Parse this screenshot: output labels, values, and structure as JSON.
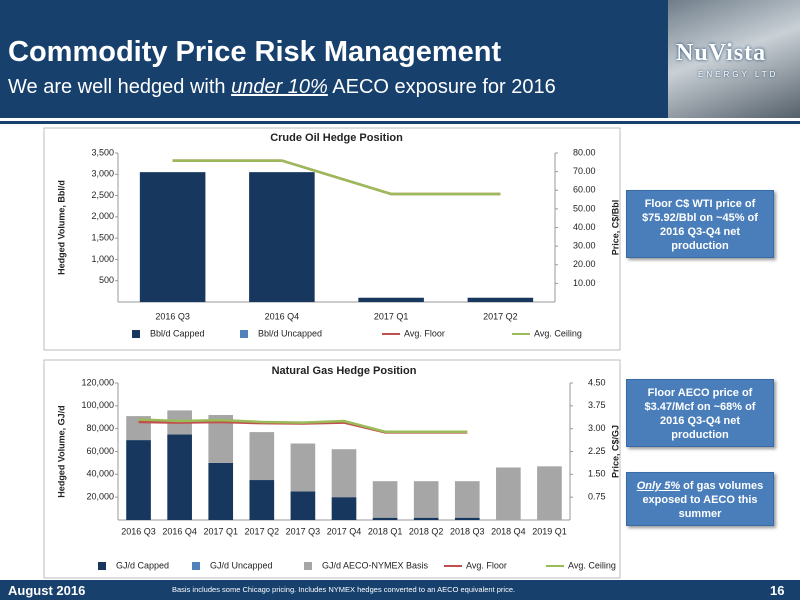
{
  "header": {
    "title": "Commodity Price Risk Management",
    "subtitle": {
      "before": "We are well hedged with ",
      "emphasis": "under 10%",
      "after": " AECO exposure for 2016"
    }
  },
  "logo": {
    "name": "NuVista",
    "sub": "ENERGY LTD"
  },
  "chart_data": [
    {
      "type": "bar",
      "stacked": true,
      "title": "Crude Oil Hedge Position",
      "ylabel": "Hedged Volume, Bbl/d",
      "y2label": "Price, C$/Bbl",
      "categories": [
        "2016 Q3",
        "2016 Q4",
        "2017 Q1",
        "2017 Q2"
      ],
      "series": [
        {
          "name": "Bbl/d Capped",
          "color": "#17375e",
          "values": [
            3050,
            3050,
            100,
            100
          ]
        },
        {
          "name": "Bbl/d Uncapped",
          "color": "#4f81bd",
          "values": [
            0,
            0,
            0,
            0
          ]
        },
        {
          "name": "Avg. Floor",
          "color": "#c0504d",
          "type": "line",
          "axis": "y2",
          "values": [
            75.92,
            75.92,
            58,
            58
          ]
        },
        {
          "name": "Avg. Ceiling",
          "color": "#9bbb59",
          "type": "line",
          "axis": "y2",
          "values": [
            75.92,
            75.92,
            58,
            58
          ]
        }
      ],
      "ylim": [
        0,
        3500
      ],
      "yticks": [
        500,
        {
          "value": 1000,
          "label": "1,000"
        },
        {
          "value": 1500,
          "label": "1,500"
        },
        {
          "value": 2000,
          "label": "2,000"
        },
        {
          "value": 2500,
          "label": "2,500"
        },
        {
          "value": 3000,
          "label": "3,000"
        },
        {
          "value": 3500,
          "label": "3,500"
        }
      ],
      "y2lim": [
        0,
        80
      ],
      "y2ticks": [
        {
          "value": 10,
          "label": "10.00"
        },
        {
          "value": 20,
          "label": "20.00"
        },
        {
          "value": 30,
          "label": "30.00"
        },
        {
          "value": 40,
          "label": "40.00"
        },
        {
          "value": 50,
          "label": "50.00"
        },
        {
          "value": 60,
          "label": "60.00"
        },
        {
          "value": 70,
          "label": "70.00"
        },
        {
          "value": 80,
          "label": "80.00"
        }
      ],
      "grid": false
    },
    {
      "type": "bar",
      "stacked": true,
      "title": "Natural Gas Hedge Position",
      "ylabel": "Hedged Volume, GJ/d",
      "y2label": "Price, C$/GJ",
      "categories": [
        "2016 Q3",
        "2016 Q4",
        "2017 Q1",
        "2017 Q2",
        "2017 Q3",
        "2017 Q4",
        "2018 Q1",
        "2018 Q2",
        "2018 Q3",
        "2018 Q4",
        "2019 Q1"
      ],
      "series": [
        {
          "name": "GJ/d Capped",
          "color": "#17375e",
          "values": [
            70000,
            75000,
            50000,
            35000,
            25000,
            20000,
            2000,
            2000,
            2000,
            0,
            0
          ]
        },
        {
          "name": "GJ/d Uncapped",
          "color": "#4f81bd",
          "values": [
            0,
            0,
            0,
            0,
            0,
            0,
            0,
            0,
            0,
            0,
            0
          ]
        },
        {
          "name": "GJ/d AECO-NYMEX Basis",
          "color": "#a6a6a6",
          "values": [
            21000,
            21000,
            42000,
            42000,
            42000,
            42000,
            32000,
            32000,
            32000,
            46000,
            47000
          ]
        },
        {
          "name": "Avg. Floor",
          "color": "#c0504d",
          "type": "line",
          "axis": "y2",
          "values": [
            3.22,
            3.2,
            3.22,
            3.18,
            3.17,
            3.2,
            2.88,
            2.88,
            2.88,
            null,
            null
          ]
        },
        {
          "name": "Avg. Ceiling",
          "color": "#9bbb59",
          "type": "line",
          "axis": "y2",
          "values": [
            3.3,
            3.25,
            3.28,
            3.22,
            3.2,
            3.25,
            2.9,
            2.9,
            2.9,
            null,
            null
          ]
        }
      ],
      "ylim": [
        0,
        120000
      ],
      "yticks": [
        {
          "value": 20000,
          "label": "20,000"
        },
        {
          "value": 40000,
          "label": "40,000"
        },
        {
          "value": 60000,
          "label": "60,000"
        },
        {
          "value": 80000,
          "label": "80,000"
        },
        {
          "value": 100000,
          "label": "100,000"
        },
        {
          "value": 120000,
          "label": "120,000"
        }
      ],
      "y2lim": [
        0,
        4.5
      ],
      "y2ticks": [
        0.75,
        {
          "value": 1.5,
          "label": "1.50"
        },
        2.25,
        {
          "value": 3,
          "label": "3.00"
        },
        3.75,
        {
          "value": 4.5,
          "label": "4.50"
        }
      ],
      "grid": false
    }
  ],
  "callouts": [
    "Floor C$ WTI price of $75.92/Bbl on ~45% of 2016 Q3-Q4 net production",
    "Floor AECO price of $3.47/Mcf on ~68% of 2016 Q3-Q4 net production",
    {
      "emphasis": "Only 5%",
      "text": " of gas volumes exposed to AECO this summer"
    }
  ],
  "footer": {
    "date": "August 2016",
    "note": "Basis includes some Chicago pricing.   Includes NYMEX hedges converted to an AECO equivalent price.",
    "page": "16"
  }
}
